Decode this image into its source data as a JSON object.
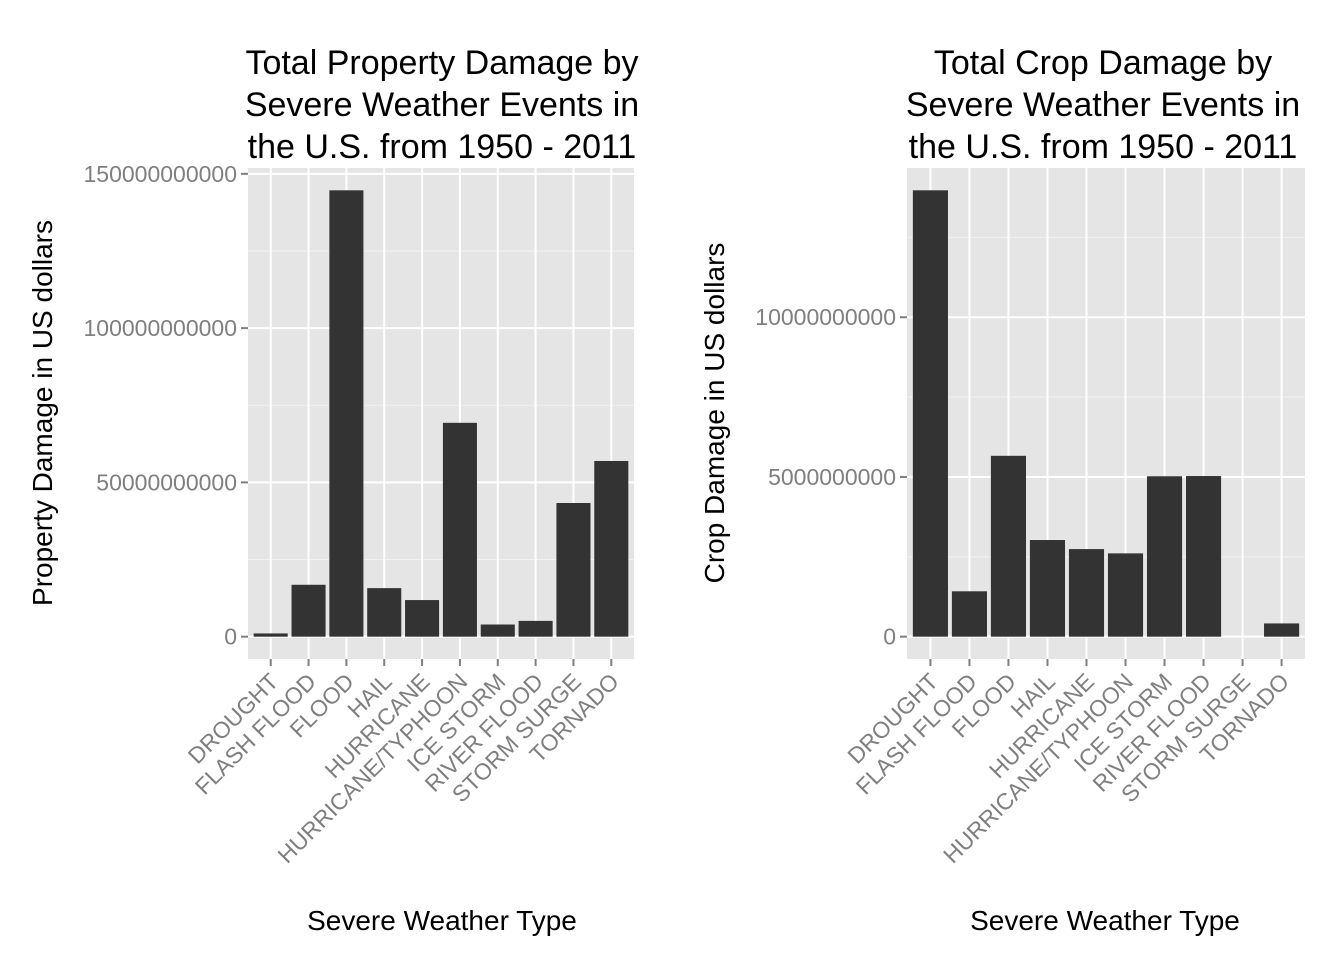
{
  "chart_data": [
    {
      "type": "bar",
      "title": [
        "Total Property Damage by",
        "Severe Weather Events in",
        "the U.S. from 1950 - 2011"
      ],
      "xlabel": "Severe Weather Type",
      "ylabel": "Property Damage in US dollars",
      "categories": [
        "DROUGHT",
        "FLASH FLOOD",
        "FLOOD",
        "HAIL",
        "HURRICANE",
        "HURRICANE/TYPHOON",
        "ICE STORM",
        "RIVER FLOOD",
        "STORM SURGE",
        "TORNADO"
      ],
      "values": [
        1046000000,
        16822000000,
        144658000000,
        15736000000,
        11868000000,
        69306000000,
        3945000000,
        5119000000,
        43324000000,
        56947000000
      ],
      "yticks": [
        0,
        50000000000,
        100000000000,
        150000000000
      ],
      "ytick_labels": [
        "0",
        "50000000000",
        "100000000000",
        "150000000000"
      ],
      "yminor": [
        25000000000,
        75000000000,
        125000000000
      ],
      "ylim": [
        -7232900000,
        151890900000
      ],
      "grid": true,
      "bar_color": "#333333",
      "panel_color": "#e5e5e5"
    },
    {
      "type": "bar",
      "title": [
        "Total Crop Damage by",
        "Severe Weather Events in",
        "the U.S. from 1950 - 2011"
      ],
      "xlabel": "Severe Weather Type",
      "ylabel": "Crop Damage in US dollars",
      "categories": [
        "DROUGHT",
        "FLASH FLOOD",
        "FLOOD",
        "HAIL",
        "HURRICANE",
        "HURRICANE/TYPHOON",
        "ICE STORM",
        "RIVER FLOOD",
        "STORM SURGE",
        "TORNADO"
      ],
      "values": [
        13973000000,
        1421000000,
        5662000000,
        3026000000,
        2742000000,
        2608000000,
        5022000000,
        5029000000,
        0,
        415000000
      ],
      "yticks": [
        0,
        5000000000,
        10000000000
      ],
      "ytick_labels": [
        "0",
        "5000000000",
        "10000000000"
      ],
      "yminor": [
        2500000000,
        7500000000,
        12500000000
      ],
      "ylim": [
        -698650000,
        14671650000
      ],
      "grid": true,
      "bar_color": "#333333",
      "panel_color": "#e5e5e5"
    }
  ]
}
